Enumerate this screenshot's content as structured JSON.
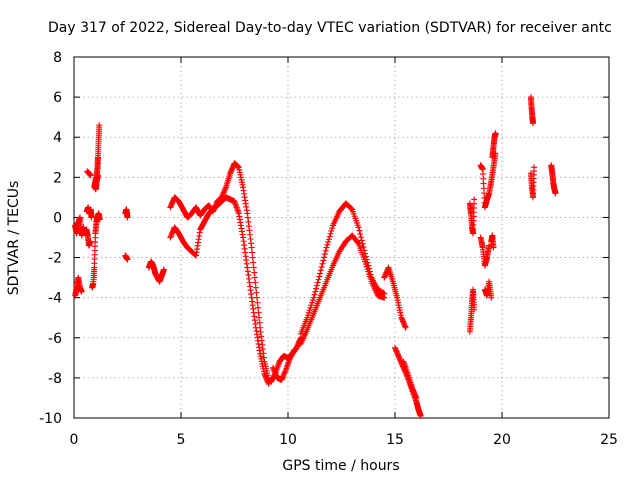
{
  "chart_data": {
    "type": "scatter",
    "title": "Day 317 of 2022, Sidereal Day-to-day VTEC variation (SDTVAR) for receiver antc",
    "xlabel": "GPS time / hours",
    "ylabel": "SDTVAR / TECUs",
    "xlim": [
      0,
      25
    ],
    "ylim": [
      -10,
      8
    ],
    "xticks": [
      "0",
      "5",
      "10",
      "15",
      "20",
      "25"
    ],
    "yticks": [
      "-10",
      "-8",
      "-6",
      "-4",
      "-2",
      "0",
      "2",
      "4",
      "6",
      "8"
    ],
    "grid": true,
    "marker": "+",
    "color": "#ff0000",
    "series": [
      {
        "name": "seg-0-0.5",
        "x": [
          0.05,
          0.12,
          0.2,
          0.28,
          0.36,
          0.45
        ],
        "y": [
          -0.4,
          -0.8,
          -0.3,
          0.0,
          -0.9,
          -0.5
        ]
      },
      {
        "name": "seg-0-low",
        "x": [
          0.06,
          0.12,
          0.2,
          0.28,
          0.36
        ],
        "y": [
          -3.9,
          -3.5,
          -3.0,
          -3.5,
          -3.7
        ]
      },
      {
        "name": "seg-0.6-0.8",
        "x": [
          0.6,
          0.66,
          0.72,
          0.78,
          0.82
        ],
        "y": [
          0.3,
          0.5,
          0.2,
          0.4,
          0.0
        ]
      },
      {
        "name": "seg-0.6-mid",
        "x": [
          0.58,
          0.64,
          0.7,
          0.76
        ],
        "y": [
          -0.6,
          -0.9,
          -1.4,
          -1.2
        ]
      },
      {
        "name": "seg-0.65-high",
        "x": [
          0.62,
          0.7,
          0.78
        ],
        "y": [
          2.3,
          2.2,
          2.1
        ]
      },
      {
        "name": "seg-0.9-1.2",
        "x": [
          0.85,
          0.9,
          0.95,
          1.0,
          1.05,
          1.1,
          1.15,
          1.2
        ],
        "y": [
          -3.5,
          -3.3,
          -2.5,
          -0.8,
          -0.2,
          0.0,
          0.2,
          -0.1
        ]
      },
      {
        "name": "seg-1.0-rise",
        "x": [
          0.95,
          1.0,
          1.05,
          1.1,
          1.12,
          1.15,
          1.18
        ],
        "y": [
          1.5,
          1.8,
          2.0,
          2.5,
          3.0,
          3.8,
          4.6
        ]
      },
      {
        "name": "seg-1.05-high",
        "x": [
          0.98,
          1.02,
          1.08,
          1.12
        ],
        "y": [
          1.6,
          1.4,
          1.9,
          2.1
        ]
      },
      {
        "name": "seg-2.45",
        "x": [
          2.4,
          2.45,
          2.5
        ],
        "y": [
          0.2,
          0.4,
          0.0
        ]
      },
      {
        "name": "seg-2.45-low",
        "x": [
          2.4,
          2.45,
          2.5
        ],
        "y": [
          -1.9,
          -2.0,
          -2.1
        ]
      },
      {
        "name": "seg-3.5-4.2",
        "x": [
          3.5,
          3.6,
          3.7,
          3.8,
          3.9,
          4.0,
          4.1,
          4.2
        ],
        "y": [
          -2.5,
          -2.2,
          -2.4,
          -2.8,
          -3.0,
          -3.2,
          -2.9,
          -2.6
        ]
      },
      {
        "name": "seg-4.5-8.5-upper",
        "x": [
          4.5,
          4.7,
          4.9,
          5.1,
          5.3,
          5.5,
          5.7,
          5.9,
          6.1,
          6.3,
          6.5,
          6.7,
          6.9,
          7.1,
          7.3,
          7.5,
          7.7,
          7.9,
          8.1,
          8.3,
          8.5,
          8.7,
          8.9,
          9.1
        ],
        "y": [
          0.5,
          1.0,
          0.8,
          0.4,
          0.0,
          0.2,
          0.5,
          0.1,
          0.4,
          0.6,
          0.3,
          0.8,
          1.0,
          1.5,
          2.2,
          2.7,
          2.5,
          1.5,
          0.2,
          -1.5,
          -3.5,
          -5.5,
          -7.2,
          -8.1
        ]
      },
      {
        "name": "seg-4.5-7.5-lower",
        "x": [
          4.5,
          4.7,
          4.9,
          5.1,
          5.3,
          5.5,
          5.7,
          5.9,
          6.1,
          6.3,
          6.5,
          6.7,
          6.9,
          7.1,
          7.3,
          7.5,
          7.7,
          7.9,
          8.1,
          8.3,
          8.5,
          8.7,
          8.9,
          9.1
        ],
        "y": [
          -1.0,
          -0.5,
          -0.8,
          -1.2,
          -1.5,
          -1.7,
          -1.9,
          -0.6,
          -0.2,
          0.2,
          0.4,
          0.6,
          0.8,
          1.0,
          0.9,
          0.8,
          0.2,
          -1.0,
          -2.5,
          -4.0,
          -5.5,
          -6.8,
          -7.8,
          -8.3
        ]
      },
      {
        "name": "seg-8.5-10.5-trough",
        "x": [
          9.2,
          9.4,
          9.6,
          9.8,
          10.0,
          10.2,
          10.4,
          10.6
        ],
        "y": [
          -8.2,
          -7.8,
          -7.2,
          -6.9,
          -7.0,
          -6.8,
          -6.5,
          -6.0
        ]
      },
      {
        "name": "seg-9.5-10.5-trough2",
        "x": [
          9.3,
          9.5,
          9.7,
          9.9,
          10.1,
          10.3
        ],
        "y": [
          -7.5,
          -8.0,
          -8.1,
          -7.6,
          -7.0,
          -6.6
        ]
      },
      {
        "name": "seg-10.5-13.5-upper",
        "x": [
          10.6,
          10.9,
          11.2,
          11.5,
          11.8,
          12.1,
          12.4,
          12.7,
          13.0,
          13.3,
          13.6,
          13.9,
          14.2,
          14.5
        ],
        "y": [
          -5.8,
          -5.0,
          -4.0,
          -2.8,
          -1.5,
          -0.4,
          0.3,
          0.7,
          0.4,
          -0.5,
          -1.8,
          -3.0,
          -3.6,
          -3.8
        ]
      },
      {
        "name": "seg-10.5-14-lower",
        "x": [
          10.6,
          10.9,
          11.2,
          11.5,
          11.8,
          12.1,
          12.4,
          12.7,
          13.0,
          13.3,
          13.6,
          13.9,
          14.2,
          14.5
        ],
        "y": [
          -6.3,
          -5.6,
          -4.8,
          -4.0,
          -3.2,
          -2.4,
          -1.7,
          -1.2,
          -0.9,
          -1.3,
          -2.2,
          -3.2,
          -3.9,
          -4.0
        ]
      },
      {
        "name": "seg-14.5-15.5",
        "x": [
          14.5,
          14.7,
          14.9,
          15.1,
          15.3,
          15.5
        ],
        "y": [
          -3.0,
          -2.5,
          -3.2,
          -4.0,
          -5.0,
          -5.5
        ]
      },
      {
        "name": "seg-15-16.2-tail",
        "x": [
          15.0,
          15.2,
          15.4,
          15.6,
          15.8,
          16.0,
          16.1,
          16.2
        ],
        "y": [
          -6.5,
          -7.0,
          -7.5,
          -8.0,
          -8.6,
          -9.2,
          -9.6,
          -9.9
        ]
      },
      {
        "name": "seg-15.5-16-tail2",
        "x": [
          15.4,
          15.6,
          15.8,
          16.0
        ],
        "y": [
          -7.2,
          -7.8,
          -8.5,
          -9.0
        ]
      },
      {
        "name": "seg-18.5-19",
        "x": [
          18.5,
          18.55,
          18.6,
          18.65,
          18.7
        ],
        "y": [
          0.7,
          0.2,
          -0.5,
          -0.8,
          0.9
        ]
      },
      {
        "name": "seg-18.5-low",
        "x": [
          18.5,
          18.55,
          18.6,
          18.65,
          18.7
        ],
        "y": [
          -5.7,
          -5.0,
          -4.2,
          -3.6,
          -4.6
        ]
      },
      {
        "name": "seg-19-19.4",
        "x": [
          19.0,
          19.1,
          19.2,
          19.3,
          19.4
        ],
        "y": [
          -1.0,
          -1.5,
          -2.4,
          -2.0,
          -1.4
        ]
      },
      {
        "name": "seg-19.2-low",
        "x": [
          19.2,
          19.3,
          19.4,
          19.5
        ],
        "y": [
          -3.6,
          -3.9,
          -3.2,
          -4.0
        ]
      },
      {
        "name": "seg-19-19.8-mid",
        "x": [
          19.0,
          19.1,
          19.2,
          19.3,
          19.4,
          19.5,
          19.6,
          19.7
        ],
        "y": [
          2.6,
          2.4,
          0.5,
          0.9,
          1.2,
          1.8,
          2.5,
          3.2
        ]
      },
      {
        "name": "seg-19.6-high",
        "x": [
          19.55,
          19.6,
          19.65,
          19.7
        ],
        "y": [
          3.0,
          3.5,
          4.0,
          4.2
        ]
      },
      {
        "name": "seg-19.5-low2",
        "x": [
          19.5,
          19.55,
          19.6
        ],
        "y": [
          -1.2,
          -0.9,
          -1.5
        ]
      },
      {
        "name": "seg-21.3",
        "x": [
          21.35,
          21.38,
          21.42,
          21.45
        ],
        "y": [
          6.0,
          5.5,
          5.0,
          4.7
        ]
      },
      {
        "name": "seg-21.4-mid",
        "x": [
          21.35,
          21.4,
          21.45,
          21.5
        ],
        "y": [
          2.2,
          1.5,
          1.0,
          2.5
        ]
      },
      {
        "name": "seg-22.3-22.5",
        "x": [
          22.3,
          22.35,
          22.4,
          22.45,
          22.5
        ],
        "y": [
          2.6,
          2.2,
          1.7,
          1.4,
          1.2
        ]
      }
    ]
  }
}
